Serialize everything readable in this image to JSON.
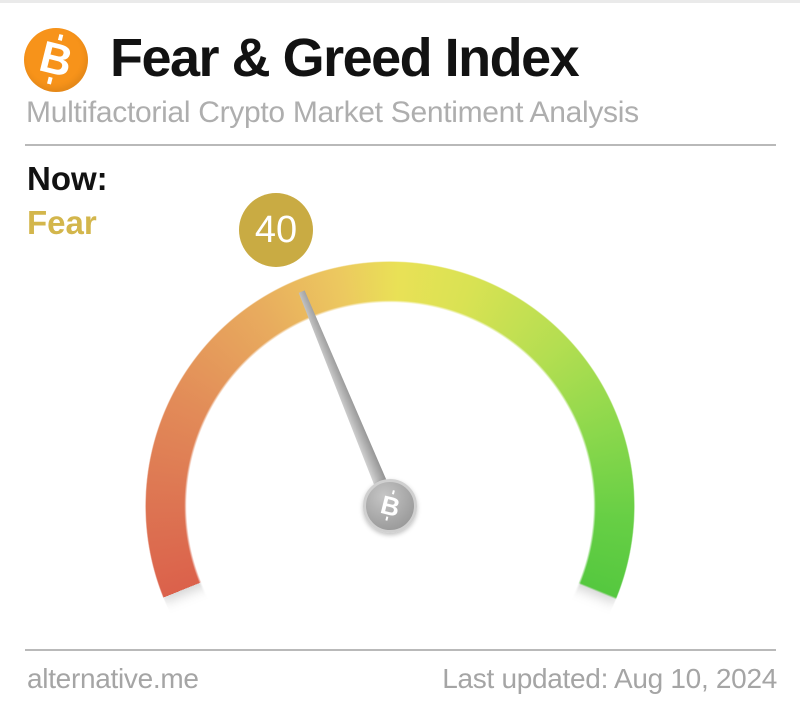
{
  "header": {
    "title": "Fear & Greed Index",
    "subtitle": "Multifactorial Crypto Market Sentiment Analysis",
    "logo_symbol": "B"
  },
  "now": {
    "label": "Now:",
    "classification": "Fear",
    "value_badge": "40"
  },
  "gauge": {
    "center_symbol": "B"
  },
  "footer": {
    "source": "alternative.me",
    "last_updated": "Last updated: Aug 10, 2024"
  },
  "colors": {
    "bitcoin_orange": "#f7931a",
    "badge_gold": "#c9ab43",
    "classification_gold": "#d3b64c",
    "needle_gray": "#b3b3b3",
    "gauge_red": "#db614b",
    "gauge_orange": "#e39a5c",
    "gauge_yellow": "#e9e156",
    "gauge_yellow_green": "#b4de51",
    "gauge_green": "#54c73e"
  },
  "chart_data": {
    "type": "gauge",
    "title": "Fear & Greed Index",
    "subtitle": "Multifactorial Crypto Market Sentiment Analysis",
    "value": 40,
    "min": 0,
    "max": 100,
    "classification": "Fear",
    "arc_sweep_degrees": 224,
    "scale_colors": [
      "#db614b",
      "#e28b58",
      "#ecc95f",
      "#e9e156",
      "#b4de51",
      "#8cd84c",
      "#54c73e"
    ],
    "source": "alternative.me",
    "last_updated": "Aug 10, 2024"
  }
}
